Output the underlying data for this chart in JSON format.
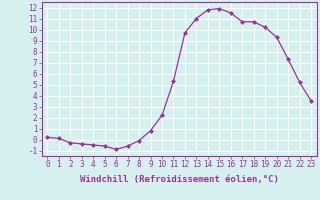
{
  "x": [
    0,
    1,
    2,
    3,
    4,
    5,
    6,
    7,
    8,
    9,
    10,
    11,
    12,
    13,
    14,
    15,
    16,
    17,
    18,
    19,
    20,
    21,
    22,
    23
  ],
  "y": [
    0.2,
    0.1,
    -0.3,
    -0.4,
    -0.5,
    -0.6,
    -0.9,
    -0.6,
    -0.1,
    0.8,
    2.2,
    5.3,
    9.7,
    11.0,
    11.8,
    11.9,
    11.5,
    10.7,
    10.7,
    10.2,
    9.3,
    7.3,
    5.2,
    3.5
  ],
  "line_color": "#993399",
  "marker": "D",
  "markersize": 2.0,
  "linewidth": 0.9,
  "xlabel": "Windchill (Refroidissement éolien,°C)",
  "ylabel_ticks": [
    -1,
    0,
    1,
    2,
    3,
    4,
    5,
    6,
    7,
    8,
    9,
    10,
    11,
    12
  ],
  "xticks": [
    0,
    1,
    2,
    3,
    4,
    5,
    6,
    7,
    8,
    9,
    10,
    11,
    12,
    13,
    14,
    15,
    16,
    17,
    18,
    19,
    20,
    21,
    22,
    23
  ],
  "ylim": [
    -1.5,
    12.5
  ],
  "xlim": [
    -0.5,
    23.5
  ],
  "bg_color": "#d6f0f0",
  "grid_color": "#ffffff",
  "tick_color": "#993399",
  "label_color": "#993399",
  "xlabel_fontsize": 6.5,
  "tick_fontsize": 5.5
}
